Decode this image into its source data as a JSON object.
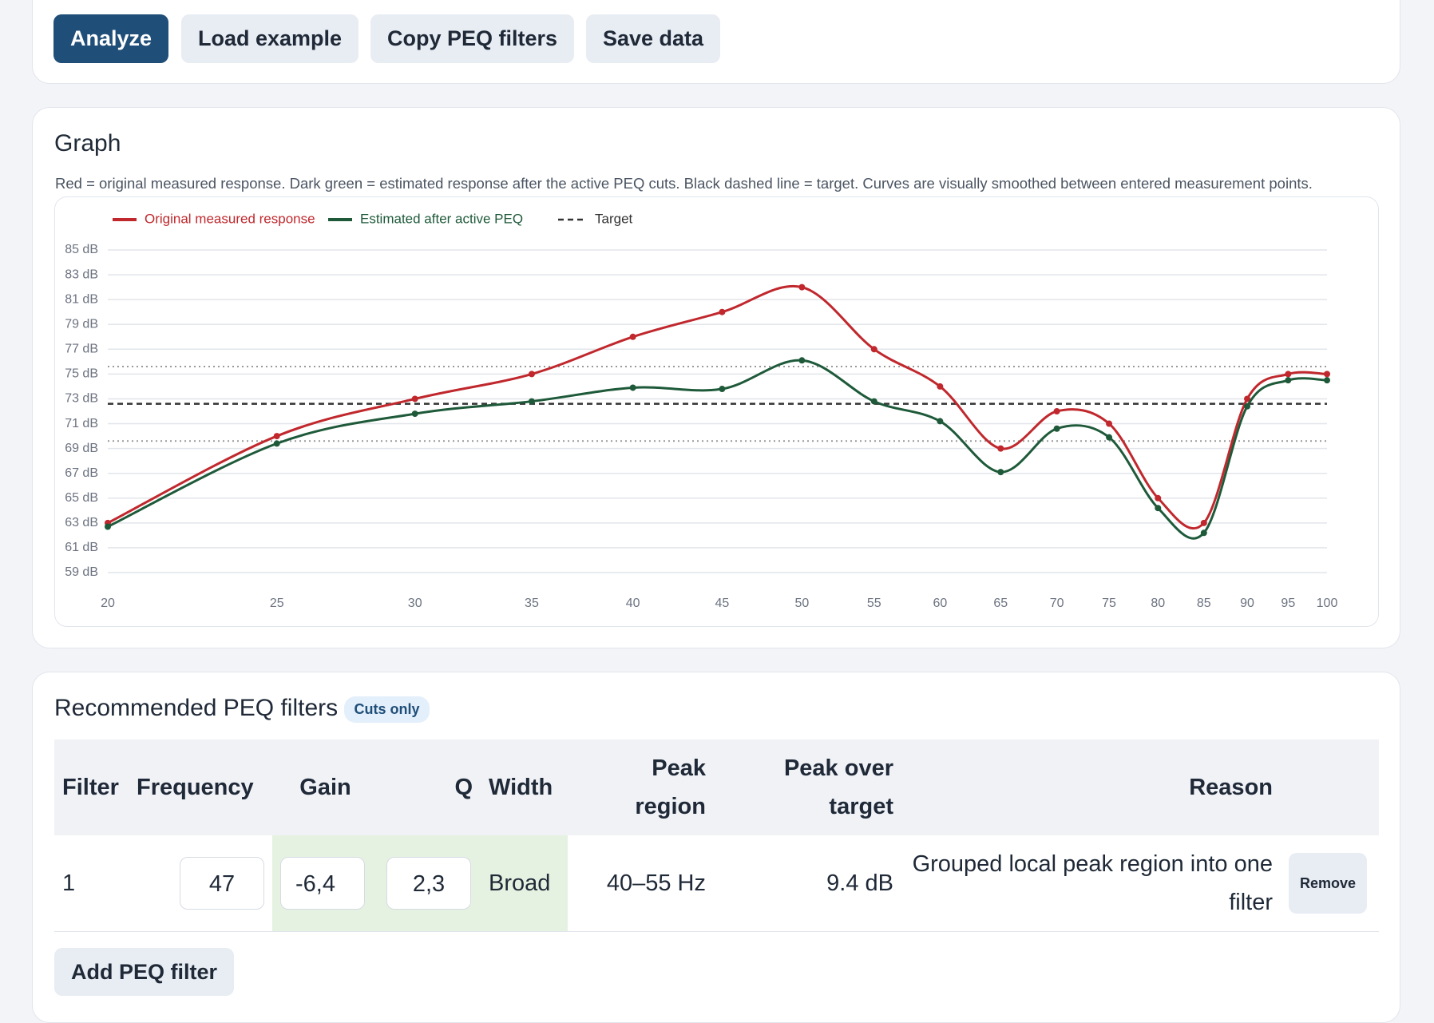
{
  "toolbar": {
    "buttons": [
      "Analyze",
      "Load example",
      "Copy PEQ filters",
      "Save data"
    ]
  },
  "graph": {
    "title": "Graph",
    "note": "Red = original measured response. Dark green = estimated response after the active PEQ cuts. Black dashed line = target. Curves are visually smoothed between entered measurement points."
  },
  "chart_data": {
    "type": "line",
    "xscale": "log",
    "grid": true,
    "legend": "top-left",
    "x": [
      20,
      25,
      30,
      35,
      40,
      45,
      50,
      55,
      60,
      65,
      70,
      75,
      80,
      85,
      90,
      95,
      100
    ],
    "xlim": [
      20,
      100
    ],
    "xticks": [
      20,
      25,
      30,
      35,
      40,
      45,
      50,
      55,
      60,
      65,
      70,
      75,
      80,
      85,
      90,
      95,
      100
    ],
    "ylim": [
      59,
      85
    ],
    "yticks": [
      {
        "value": 59,
        "label": "59 dB"
      },
      {
        "value": 61,
        "label": "61 dB"
      },
      {
        "value": 63,
        "label": "63 dB"
      },
      {
        "value": 65,
        "label": "65 dB"
      },
      {
        "value": 67,
        "label": "67 dB"
      },
      {
        "value": 69,
        "label": "69 dB"
      },
      {
        "value": 71,
        "label": "71 dB"
      },
      {
        "value": 73,
        "label": "73 dB"
      },
      {
        "value": 75,
        "label": "75 dB"
      },
      {
        "value": 77,
        "label": "77 dB"
      },
      {
        "value": 79,
        "label": "79 dB"
      },
      {
        "value": 81,
        "label": "81 dB"
      },
      {
        "value": 83,
        "label": "83 dB"
      },
      {
        "value": 85,
        "label": "85 dB"
      }
    ],
    "series": [
      {
        "name": "Original measured response",
        "color": "#c0282d",
        "values": [
          63,
          70,
          73,
          75,
          78,
          80,
          82,
          77,
          74,
          69,
          72,
          71,
          65,
          63,
          73,
          75,
          75
        ]
      },
      {
        "name": "Estimated after active PEQ",
        "color": "#1e5a3a",
        "values": [
          62.7,
          69.4,
          71.8,
          72.8,
          73.9,
          73.8,
          76.1,
          72.8,
          71.2,
          67.1,
          70.6,
          69.9,
          64.2,
          62.2,
          72.4,
          74.5,
          74.5
        ]
      }
    ],
    "target": {
      "name": "Target",
      "value": 72.6,
      "color": "#333333"
    },
    "tolerance": [
      69.6,
      75.6
    ]
  },
  "peq": {
    "title": "Recommended PEQ filters",
    "badge": "Cuts only",
    "headers": [
      "Filter",
      "Frequency",
      "Gain",
      "Q",
      "Width",
      "Peak region",
      "Peak over target",
      "Reason"
    ],
    "rows": [
      [
        "1",
        "47",
        "-6,4",
        "2,3",
        "Broad",
        "40–55 Hz",
        "9.4 dB",
        "Grouped local peak region into one filter",
        "Remove"
      ]
    ],
    "add_button": "Add PEQ filter"
  }
}
